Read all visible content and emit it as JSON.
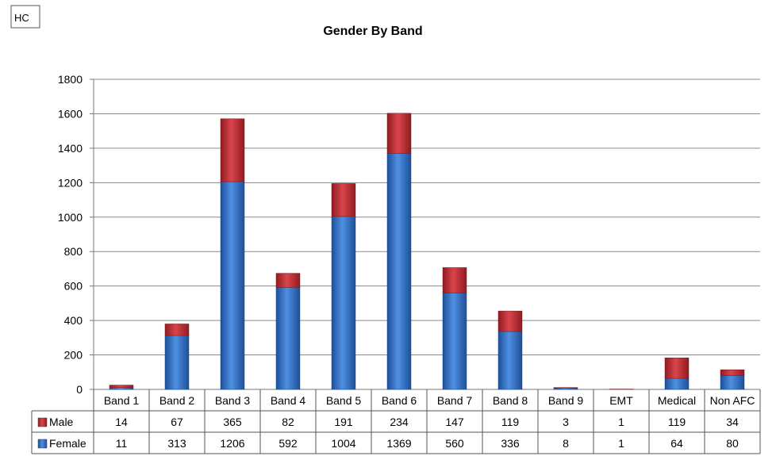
{
  "hc_label": "HC",
  "chart_data": {
    "type": "bar",
    "stacked": true,
    "title": "Gender By Band",
    "categories": [
      "Band 1",
      "Band 2",
      "Band 3",
      "Band 4",
      "Band 5",
      "Band 6",
      "Band 7",
      "Band 8",
      "Band 9",
      "EMT",
      "Medical",
      "Non AFC"
    ],
    "series": [
      {
        "name": "Female",
        "values": [
          11,
          313,
          1206,
          592,
          1004,
          1369,
          560,
          336,
          8,
          1,
          64,
          80
        ],
        "color": "#3a78c8"
      },
      {
        "name": "Male",
        "values": [
          14,
          67,
          365,
          82,
          191,
          234,
          147,
          119,
          3,
          1,
          119,
          34
        ],
        "color": "#c0353a"
      }
    ],
    "table_row_order": [
      "Male",
      "Female"
    ],
    "ylim": [
      0,
      1800
    ],
    "yticks": [
      0,
      200,
      400,
      600,
      800,
      1000,
      1200,
      1400,
      1600,
      1800
    ],
    "grid": true,
    "legend": "data-table"
  }
}
